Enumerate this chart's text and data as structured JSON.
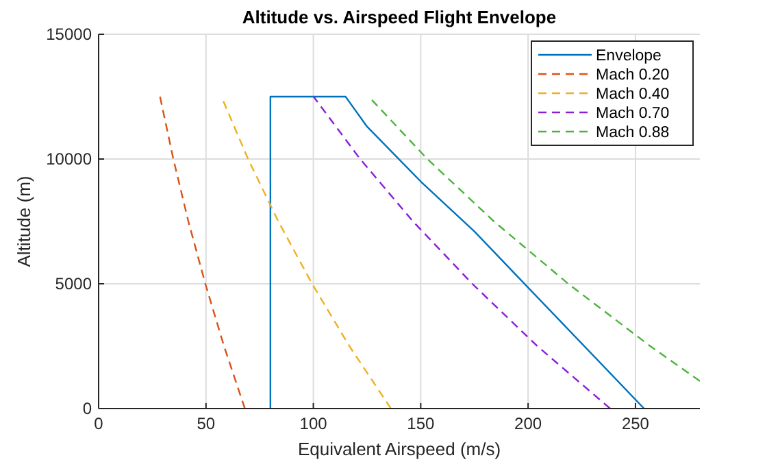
{
  "chart_data": {
    "type": "line",
    "title": "Altitude vs. Airspeed Flight Envelope",
    "xlabel": "Equivalent Airspeed (m/s)",
    "ylabel": "Altitude (m)",
    "xlim": [
      0,
      280
    ],
    "ylim": [
      0,
      15000
    ],
    "xticks": [
      0,
      50,
      100,
      150,
      200,
      250
    ],
    "yticks": [
      0,
      5000,
      10000,
      15000
    ],
    "grid": true,
    "legend": "top right",
    "series": [
      {
        "name": "Envelope",
        "color": "#0072bd",
        "line_style": "solid",
        "x": [
          80,
          80,
          115,
          125,
          150,
          175,
          195,
          254
        ],
        "values": [
          0,
          12500,
          12500,
          11300,
          9100,
          7100,
          5300,
          0
        ]
      },
      {
        "name": "Mach 0.20",
        "color": "#d95319",
        "line_style": "dashed",
        "x": [
          68.1,
          58.4,
          49.7,
          41.8,
          34.8,
          28.6
        ],
        "values": [
          0,
          2500,
          5000,
          7500,
          10000,
          12500
        ]
      },
      {
        "name": "Mach 0.40",
        "color": "#edb120",
        "line_style": "dashed",
        "x": [
          136.1,
          116.8,
          99.4,
          83.7,
          69.6,
          57.2
        ],
        "values": [
          0,
          2500,
          5000,
          7500,
          10000,
          12500
        ]
      },
      {
        "name": "Mach 0.70",
        "color": "#8a1fd8",
        "line_style": "dashed",
        "x": [
          238.2,
          204.3,
          174.0,
          146.4,
          121.8,
          100.1
        ],
        "values": [
          0,
          2500,
          5000,
          7500,
          10000,
          12500
        ]
      },
      {
        "name": "Mach 0.88",
        "color": "#4db33d",
        "line_style": "dashed",
        "x": [
          280,
          256.9,
          218.7,
          184.1,
          153.1,
          125.8
        ],
        "values": [
          1100,
          2500,
          5000,
          7500,
          10000,
          12500
        ]
      }
    ]
  }
}
